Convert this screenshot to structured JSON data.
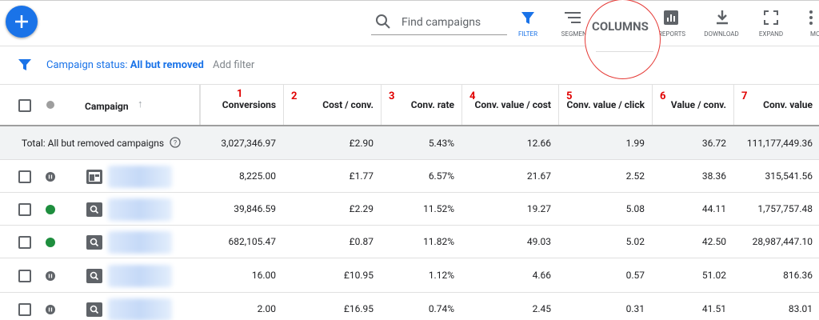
{
  "toolbar": {
    "search_placeholder": "Find campaigns",
    "buttons": [
      "FILTER",
      "SEGMENT",
      "REPORTS",
      "DOWNLOAD",
      "EXPAND",
      "MORE"
    ],
    "callout": "COLUMNS"
  },
  "filter_bar": {
    "label": "Campaign status:",
    "value": "All but removed",
    "add": "Add filter"
  },
  "table": {
    "campaign_header": "Campaign",
    "columns": [
      {
        "label": "Conversions",
        "annotation": "1"
      },
      {
        "label": "Cost / conv.",
        "annotation": "2"
      },
      {
        "label": "Conv. rate",
        "annotation": "3"
      },
      {
        "label": "Conv. value / cost",
        "annotation": "4"
      },
      {
        "label": "Conv. value / click",
        "annotation": "5"
      },
      {
        "label": "Value / conv.",
        "annotation": "6"
      },
      {
        "label": "Conv. value",
        "annotation": "7"
      }
    ],
    "total": {
      "label": "Total: All but removed campaigns",
      "values": [
        "3,027,346.97",
        "£2.90",
        "5.43%",
        "12.66",
        "1.99",
        "36.72",
        "111,177,449.36"
      ]
    },
    "rows": [
      [
        "8,225.00",
        "£1.77",
        "6.57%",
        "21.67",
        "2.52",
        "38.36",
        "315,541.56"
      ],
      [
        "39,846.59",
        "£2.29",
        "11.52%",
        "19.27",
        "5.08",
        "44.11",
        "1,757,757.48"
      ],
      [
        "682,105.47",
        "£0.87",
        "11.82%",
        "49.03",
        "5.02",
        "42.50",
        "28,987,447.10"
      ],
      [
        "16.00",
        "£10.95",
        "1.12%",
        "4.66",
        "0.57",
        "51.02",
        "816.36"
      ],
      [
        "2.00",
        "£16.95",
        "0.74%",
        "2.45",
        "0.31",
        "41.51",
        "83.01"
      ]
    ]
  }
}
